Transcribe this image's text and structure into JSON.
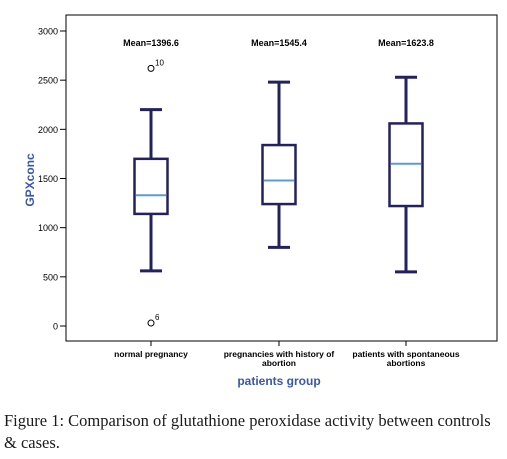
{
  "chart_data": {
    "type": "box",
    "title": "",
    "xlabel": "patients group",
    "ylabel": "GPXconc",
    "ylim": [
      -150,
      3050
    ],
    "yticks": [
      0,
      500,
      1000,
      1500,
      2000,
      2500,
      3000
    ],
    "grid": false,
    "colors": {
      "box": "#23215f",
      "median": "#5b9bd5",
      "axis_label": "#3a57a8",
      "frame": "#000000"
    },
    "categories": [
      "normal pregnancy",
      "pregnancies with history of abortion",
      "patients with spontaneous abortions"
    ],
    "category_label_lines": [
      [
        "normal pregnancy"
      ],
      [
        "pregnancies with history of",
        "abortion"
      ],
      [
        "patients with spontaneous",
        "abortions"
      ]
    ],
    "means": [
      "Mean=1396.6",
      "Mean=1545.4",
      "Mean=1623.8"
    ],
    "boxes": [
      {
        "whisker_low": 560,
        "q1": 1140,
        "median": 1330,
        "q3": 1700,
        "whisker_high": 2200,
        "outliers": [
          {
            "value": 2620,
            "label": "10"
          },
          {
            "value": 30,
            "label": "6"
          }
        ]
      },
      {
        "whisker_low": 800,
        "q1": 1240,
        "median": 1480,
        "q3": 1840,
        "whisker_high": 2480,
        "outliers": []
      },
      {
        "whisker_low": 550,
        "q1": 1220,
        "median": 1650,
        "q3": 2060,
        "whisker_high": 2530,
        "outliers": []
      }
    ]
  },
  "caption": {
    "label": "Figure 1:",
    "text": "Comparison of glutathione peroxidase activity between controls & cases."
  }
}
